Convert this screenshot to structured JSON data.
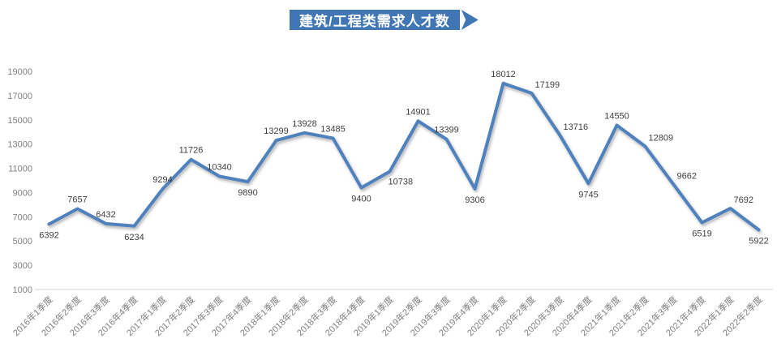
{
  "title_banner": {
    "text": "建筑/工程类需求人才数"
  },
  "colors": {
    "background": "#FFFFFF",
    "line": "#4F81BD",
    "banner": "#4076B4",
    "banner_text": "#FFFFFF",
    "axis_line": "#D3D3D3",
    "tick_label": "#808080",
    "data_label": "#3F3F3F"
  },
  "chart_data": {
    "type": "line",
    "title": "建筑/工程类需求人才数",
    "xlabel": "",
    "ylabel": "",
    "categories": [
      "2016年1季度",
      "2016年2季度",
      "2016年3季度",
      "2016年4季度",
      "2017年1季度",
      "2017年2季度",
      "2017年3季度",
      "2017年4季度",
      "2018年1季度",
      "2018年2季度",
      "2018年3季度",
      "2018年4季度",
      "2019年1季度",
      "2019年2季度",
      "2019年3季度",
      "2019年4季度",
      "2020年1季度",
      "2020年2季度",
      "2020年3季度",
      "2020年4季度",
      "2021年1季度",
      "2021年2季度",
      "2021年3季度",
      "2021年4季度",
      "2022年1季度",
      "2022年2季度"
    ],
    "values": [
      6392,
      7657,
      6432,
      6234,
      9294,
      11726,
      10340,
      9890,
      13299,
      13928,
      13485,
      9400,
      10738,
      14901,
      13399,
      9306,
      18012,
      17199,
      13716,
      9745,
      14550,
      12809,
      9662,
      6519,
      7692,
      5922
    ],
    "label_placements": [
      "b",
      "a",
      "a",
      "b",
      "a",
      "a",
      "a",
      "b",
      "a",
      "a",
      "a",
      "b",
      "br",
      "a",
      "a",
      "b",
      "a",
      "ar",
      "ar",
      "b",
      "a",
      "ar",
      "ar",
      "b",
      "ar",
      "b"
    ],
    "ylim": [
      1000,
      19000
    ],
    "y_tick_step": 2000,
    "y_tick_labels": [
      "1000",
      "3000",
      "5000",
      "7000",
      "9000",
      "11000",
      "13000",
      "15000",
      "17000",
      "19000"
    ],
    "x_label_rotation": -45,
    "grid": false,
    "legend": "none",
    "data_labels_shown": true
  }
}
